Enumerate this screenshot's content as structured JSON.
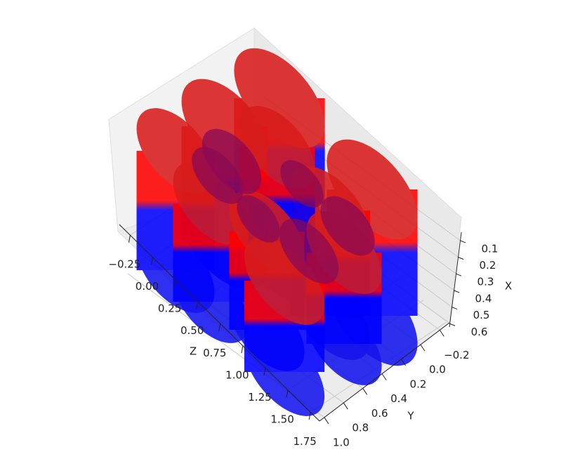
{
  "chart_data": {
    "type": "3d",
    "xlabel": "X",
    "ylabel": "Y",
    "zlabel": "Z",
    "xlim": [
      0.05,
      0.62
    ],
    "xticks": [
      0.1,
      0.2,
      0.3,
      0.4,
      0.5,
      0.6
    ],
    "ylim": [
      -0.3,
      1.05
    ],
    "yticks": [
      {
        "value": -0.2,
        "label": "−0.2"
      },
      {
        "value": 0.0,
        "label": "0.0"
      },
      0.2,
      0.4,
      0.6,
      0.8,
      {
        "value": 1.0,
        "label": "1.0"
      }
    ],
    "zlim": [
      -0.37,
      1.85
    ],
    "zticks": [
      {
        "value": -0.25,
        "label": "−0.25"
      },
      {
        "value": 0.0,
        "label": "0.00"
      },
      {
        "value": 0.25,
        "label": "0.25"
      },
      {
        "value": 0.5,
        "label": "0.50"
      },
      {
        "value": 0.75,
        "label": "0.75"
      },
      {
        "value": 1.0,
        "label": "1.00"
      },
      {
        "value": 1.25,
        "label": "1.25"
      },
      {
        "value": 1.5,
        "label": "1.50"
      },
      {
        "value": 1.75,
        "label": "1.75"
      }
    ],
    "grid": true
  }
}
